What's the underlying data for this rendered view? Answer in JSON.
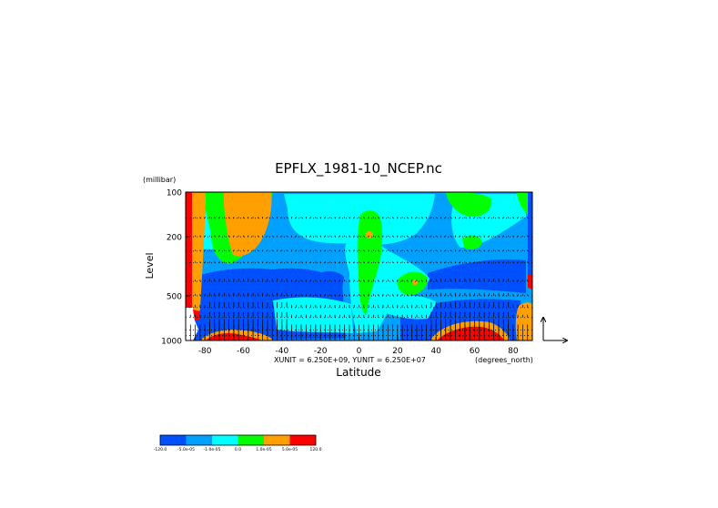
{
  "chart_data": {
    "type": "heatmap",
    "title": "EPFLX_1981-10_NCEP.nc",
    "xlabel": "Latitude",
    "x_units": "(degrees_north)",
    "ylabel": "Level",
    "y_units": "(millibar)",
    "scale_note": "XUNIT = 6.250E+09, YUNIT = 6.250E+07",
    "x_ticks": [
      "-80",
      "-60",
      "-40",
      "-20",
      "0",
      "20",
      "40",
      "60",
      "80"
    ],
    "x_tick_values": [
      -80,
      -60,
      -40,
      -20,
      0,
      20,
      40,
      60,
      80
    ],
    "y_ticks": [
      "100",
      "200",
      "500",
      "1000"
    ],
    "y_tick_values": [
      100,
      200,
      500,
      1000
    ],
    "xlim": [
      -90,
      90
    ],
    "ylim": [
      1000,
      100
    ],
    "y_scale": "log",
    "vector_overlay": true,
    "palette": [
      "#0050ff",
      "#00a0ff",
      "#00ffff",
      "#00ff00",
      "#ffa000",
      "#ff0000"
    ],
    "colorbar": {
      "labels": [
        "-120.0",
        "-5.0e-05",
        "-1.0e-05",
        "0.0",
        "1.0e-05",
        "5.0e-05",
        "120.0"
      ],
      "colors": [
        "#0050ff",
        "#00a0ff",
        "#00ffff",
        "#00ff00",
        "#ffa000",
        "#ff0000"
      ]
    }
  }
}
